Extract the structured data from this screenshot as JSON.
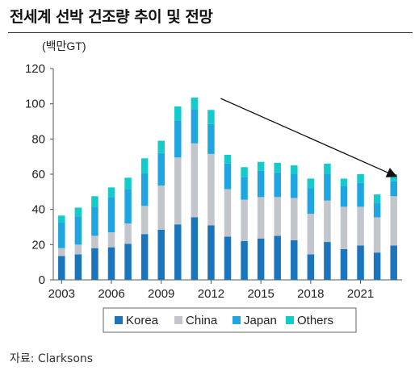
{
  "header": {
    "title": "전세계 선박 건조량 추이 및 전망"
  },
  "footer": {
    "source": "자료: Clarksons"
  },
  "chart_data": {
    "type": "bar",
    "stacked": true,
    "unit_label": "(백만GT)",
    "x": [
      2003,
      2004,
      2005,
      2006,
      2007,
      2008,
      2009,
      2010,
      2011,
      2012,
      2013,
      2014,
      2015,
      2016,
      2017,
      2018,
      2019,
      2020,
      2021,
      2022,
      2023
    ],
    "x_tick_labels": [
      "2003",
      "2006",
      "2009",
      "2012",
      "2015",
      "2018",
      "2021"
    ],
    "y_ticks": [
      0,
      20,
      40,
      60,
      80,
      100,
      120
    ],
    "ylim": [
      0,
      120
    ],
    "series": [
      {
        "name": "Korea",
        "color": "#1b75bc",
        "values": [
          13.5,
          14.5,
          18,
          18.5,
          20.5,
          26,
          28.5,
          31.5,
          35.5,
          31,
          24.5,
          22,
          23.5,
          25,
          22.5,
          14.5,
          21.5,
          17.5,
          19.5,
          15.5,
          19.5
        ]
      },
      {
        "name": "China",
        "color": "#c3c5cd",
        "values": [
          4.5,
          5.5,
          7,
          8.5,
          11.5,
          16,
          25,
          38,
          42,
          40.5,
          27,
          23.5,
          23.5,
          22,
          24,
          23,
          23.5,
          24,
          22,
          20,
          28
        ]
      },
      {
        "name": "Japan",
        "color": "#1fa6e2",
        "values": [
          14.5,
          16,
          16.5,
          20,
          19.5,
          18.5,
          18.5,
          21,
          19.5,
          17,
          14.5,
          13,
          15,
          14,
          13.5,
          14.5,
          15,
          12,
          13.5,
          8,
          8.5
        ]
      },
      {
        "name": "Others",
        "color": "#13cbcb",
        "values": [
          4,
          5,
          6,
          5.5,
          6.5,
          8.5,
          7,
          8,
          6.5,
          8,
          5,
          5.5,
          5,
          5.5,
          5,
          5.5,
          6,
          4,
          5,
          5,
          4
        ]
      }
    ],
    "annotation": {
      "type": "trend-arrow",
      "from_year": 2012,
      "from_value": 103,
      "to_year": 2023,
      "to_value": 59
    },
    "legend": {
      "position": "bottom",
      "entries": [
        "Korea",
        "China",
        "Japan",
        "Others"
      ]
    },
    "grid": false
  }
}
